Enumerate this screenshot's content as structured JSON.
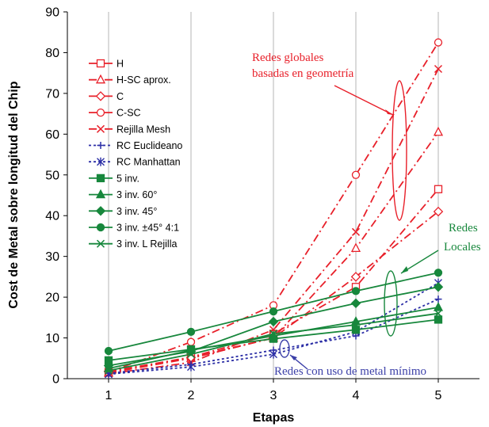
{
  "chart_data": {
    "type": "line",
    "title": "",
    "xlabel": "Etapas",
    "ylabel": "Cost de Metal sobre longitud del Chip",
    "x": [
      1,
      2,
      3,
      4,
      5
    ],
    "xlim": [
      0.5,
      5.5
    ],
    "ylim": [
      0,
      90
    ],
    "yticks": [
      0,
      10,
      20,
      30,
      40,
      50,
      60,
      70,
      80,
      90
    ],
    "grid": "x-only",
    "legend_position": "top-left",
    "series": [
      {
        "name": "H",
        "color": "#e8202a",
        "dash": "dashdot",
        "marker": "square-open",
        "values": [
          1.6,
          5.3,
          11,
          22.5,
          46.5
        ]
      },
      {
        "name": "H-SC aprox.",
        "color": "#e8202a",
        "dash": "dashdot",
        "marker": "triangle-open",
        "values": [
          1.4,
          5,
          10,
          32,
          60.5
        ]
      },
      {
        "name": "C",
        "color": "#e8202a",
        "dash": "dashdot",
        "marker": "diamond-open",
        "values": [
          1.8,
          5.2,
          10,
          25,
          41
        ]
      },
      {
        "name": "C-SC",
        "color": "#e8202a",
        "dash": "dashdot",
        "marker": "circle-open",
        "values": [
          1.6,
          9,
          18,
          50,
          82.5
        ]
      },
      {
        "name": "Rejilla Mesh",
        "color": "#e8202a",
        "dash": "dashdot",
        "marker": "x",
        "values": [
          1.2,
          4,
          12,
          36,
          76
        ]
      },
      {
        "name": "RC Euclideano",
        "color": "#2c2fa6",
        "dash": "dotted",
        "marker": "plus",
        "values": [
          1.3,
          3.5,
          7,
          10.5,
          19.5
        ]
      },
      {
        "name": "RC Manhattan",
        "color": "#2c2fa6",
        "dash": "dotted",
        "marker": "asterisk",
        "values": [
          1.1,
          2.9,
          6,
          11.5,
          23.5
        ]
      },
      {
        "name": "5 inv.",
        "color": "#17873c",
        "dash": "solid",
        "marker": "square",
        "values": [
          4.5,
          7.2,
          9.8,
          12,
          14.5
        ]
      },
      {
        "name": "3 inv. 60°",
        "color": "#17873c",
        "dash": "solid",
        "marker": "triangle",
        "values": [
          2.5,
          7,
          10.5,
          14,
          17.5
        ]
      },
      {
        "name": "3 inv. 45°",
        "color": "#17873c",
        "dash": "solid",
        "marker": "diamond",
        "values": [
          3.2,
          6.7,
          14,
          18.5,
          22.5
        ]
      },
      {
        "name": "3 inv. ±45° 4:1",
        "color": "#17873c",
        "dash": "solid",
        "marker": "circle",
        "values": [
          6.8,
          11.5,
          16.5,
          21.5,
          26
        ]
      },
      {
        "name": "3 inv. L Rejilla",
        "color": "#17873c",
        "dash": "solid",
        "marker": "x",
        "values": [
          2,
          6,
          11,
          13.2,
          16
        ]
      }
    ],
    "annotations": [
      {
        "text_lines": [
          "Redes globales",
          "basadas en geometría"
        ],
        "color": "#e8202a"
      },
      {
        "text_lines": [
          "Redes",
          "Locales"
        ],
        "color": "#17873c"
      },
      {
        "text_lines": [
          "Redes con uso de metal mínimo"
        ],
        "color": "#3b3fa8"
      }
    ]
  }
}
